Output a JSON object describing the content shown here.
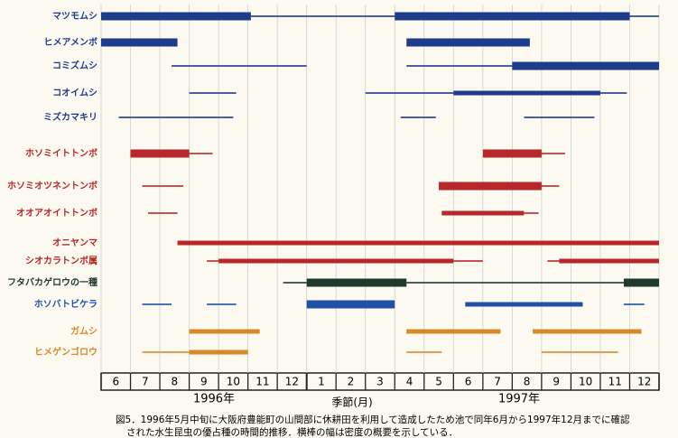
{
  "chart_data": {
    "type": "timeline",
    "xlabel": "季節(月)",
    "year_labels": [
      "1996年",
      "1997年"
    ],
    "categories": [
      "6",
      "7",
      "8",
      "9",
      "10",
      "11",
      "12",
      "1",
      "2",
      "3",
      "4",
      "5",
      "6",
      "7",
      "8",
      "9",
      "10",
      "11",
      "12"
    ],
    "xlim": [
      0,
      19
    ],
    "rows": [
      {
        "name": "マツモムシ",
        "color": "#1f3b8c",
        "segments": [
          {
            "start": 0,
            "end": 5.1,
            "width": 3
          },
          {
            "start": 5.1,
            "end": 10,
            "width": 1
          },
          {
            "start": 10,
            "end": 18,
            "width": 3
          },
          {
            "start": 18,
            "end": 19,
            "width": 1
          }
        ]
      },
      {
        "name": "ヒメアメンボ",
        "color": "#1f3b8c",
        "segments": [
          {
            "start": 0,
            "end": 2.6,
            "width": 3
          },
          {
            "start": 10.4,
            "end": 14.6,
            "width": 3
          }
        ]
      },
      {
        "name": "コミズムシ",
        "color": "#1f3b8c",
        "segments": [
          {
            "start": 2.4,
            "end": 7,
            "width": 1
          },
          {
            "start": 10.4,
            "end": 14,
            "width": 1
          },
          {
            "start": 14,
            "end": 19,
            "width": 3
          }
        ]
      },
      {
        "name": "コオイムシ",
        "color": "#1f3b8c",
        "segments": [
          {
            "start": 3,
            "end": 4.6,
            "width": 1
          },
          {
            "start": 9,
            "end": 12,
            "width": 1
          },
          {
            "start": 12,
            "end": 17,
            "width": 2
          },
          {
            "start": 17,
            "end": 17.9,
            "width": 1
          }
        ]
      },
      {
        "name": "ミズカマキリ",
        "color": "#1f3b8c",
        "segments": [
          {
            "start": 0.6,
            "end": 4.5,
            "width": 1
          },
          {
            "start": 10.2,
            "end": 11.4,
            "width": 1
          },
          {
            "start": 14.4,
            "end": 16.8,
            "width": 1
          }
        ]
      },
      {
        "name": "ホソミイトトンボ",
        "color": "#b8282a",
        "segments": [
          {
            "start": 1,
            "end": 3,
            "width": 3
          },
          {
            "start": 3,
            "end": 3.8,
            "width": 1
          },
          {
            "start": 13,
            "end": 15,
            "width": 3
          },
          {
            "start": 15,
            "end": 15.8,
            "width": 1
          }
        ]
      },
      {
        "name": "ホソミオツネントンボ",
        "color": "#b8282a",
        "segments": [
          {
            "start": 1.4,
            "end": 2.8,
            "width": 1
          },
          {
            "start": 11.5,
            "end": 15,
            "width": 3
          },
          {
            "start": 15,
            "end": 15.6,
            "width": 1
          }
        ]
      },
      {
        "name": "オオアオイトトンボ",
        "color": "#b8282a",
        "segments": [
          {
            "start": 1.6,
            "end": 2.6,
            "width": 1
          },
          {
            "start": 11.6,
            "end": 14.4,
            "width": 2
          },
          {
            "start": 14.4,
            "end": 14.9,
            "width": 1
          }
        ]
      },
      {
        "name": "オニヤンマ",
        "color": "#b8282a",
        "segments": [
          {
            "start": 2.6,
            "end": 19,
            "width": 2
          }
        ]
      },
      {
        "name": "シオカラトンボ属",
        "color": "#b8282a",
        "segments": [
          {
            "start": 3.6,
            "end": 4,
            "width": 1
          },
          {
            "start": 4,
            "end": 12,
            "width": 2
          },
          {
            "start": 12,
            "end": 13,
            "width": 1
          },
          {
            "start": 15.2,
            "end": 15.6,
            "width": 1
          },
          {
            "start": 15.6,
            "end": 19,
            "width": 2
          }
        ]
      },
      {
        "name": "フタバカゲロウの一種",
        "color": "#1e3a2c",
        "segments": [
          {
            "start": 6.2,
            "end": 7,
            "width": 1
          },
          {
            "start": 7,
            "end": 10.4,
            "width": 3
          },
          {
            "start": 10.4,
            "end": 17.8,
            "width": 1
          },
          {
            "start": 17.8,
            "end": 19,
            "width": 3
          }
        ]
      },
      {
        "name": "ホソバトビケラ",
        "color": "#2050a8",
        "segments": [
          {
            "start": 1.4,
            "end": 2.4,
            "width": 1
          },
          {
            "start": 3.6,
            "end": 4.6,
            "width": 1
          },
          {
            "start": 7,
            "end": 10,
            "width": 3
          },
          {
            "start": 12.4,
            "end": 16.4,
            "width": 2
          },
          {
            "start": 17.8,
            "end": 18.5,
            "width": 1
          }
        ]
      },
      {
        "name": "ガムシ",
        "color": "#d98a28",
        "segments": [
          {
            "start": 3,
            "end": 5.4,
            "width": 2
          },
          {
            "start": 10.4,
            "end": 13.6,
            "width": 2
          },
          {
            "start": 14.7,
            "end": 18.4,
            "width": 2
          }
        ]
      },
      {
        "name": "ヒメゲンゴロウ",
        "color": "#d98a28",
        "segments": [
          {
            "start": 1.4,
            "end": 3,
            "width": 1
          },
          {
            "start": 3,
            "end": 5,
            "width": 2
          },
          {
            "start": 10.4,
            "end": 11.6,
            "width": 1
          },
          {
            "start": 15,
            "end": 17.6,
            "width": 1
          }
        ]
      }
    ],
    "caption": [
      "図5．1996年5月中旬に大阪府豊能町の山間部に休耕田を利用して造成したため池で同年6月から1997年12月までに確認",
      "された水生昆虫の優占種の時間的推移．横棒の幅は密度の概要を示している．"
    ]
  }
}
